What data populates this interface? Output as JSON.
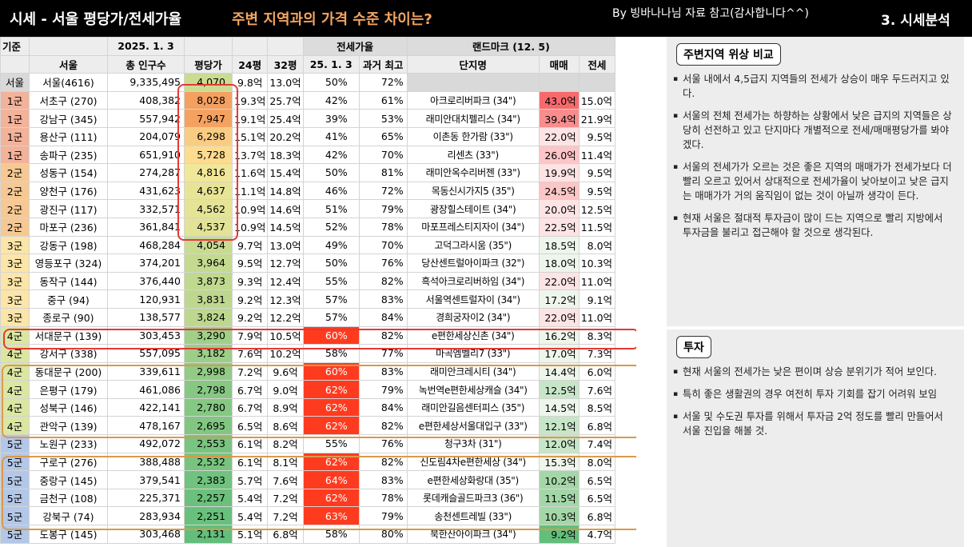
{
  "header": {
    "title": "시세 - 서울 평당가/전세가율",
    "subtitle": "주변 지역과의 가격 수준 차이는?",
    "credit": "By 빙바나나님 자료 참고(감사합니다^^)",
    "section": "3. 시세분석"
  },
  "table": {
    "row0": {
      "label": "기준",
      "date": "2025. 1. 3",
      "jeonse_header": "전세가율",
      "landmark_header": "랜드마크 (12. 5)"
    },
    "headers": [
      "서울",
      "총 인구수",
      "평당가",
      "24평",
      "32평",
      "25. 1. 3",
      "과거 최고",
      "단지명",
      "매매",
      "전세"
    ],
    "rows": [
      {
        "grade": "서울",
        "district": "서울(4616)",
        "pop": "9,335,495",
        "pyeong": "4,070",
        "p24": "9.8억",
        "p32": "13.0억",
        "jr": "50%",
        "jp": "72%",
        "name": "",
        "sale": "",
        "jeonse": ""
      },
      {
        "grade": "1군",
        "district": "서초구 (270)",
        "pop": "408,382",
        "pyeong": "8,028",
        "p24": "19.3억",
        "p32": "25.7억",
        "jr": "42%",
        "jp": "61%",
        "name": "아크로리버파크 (34\")",
        "sale": "43.0억",
        "jeonse": "15.0억"
      },
      {
        "grade": "1군",
        "district": "강남구 (345)",
        "pop": "557,942",
        "pyeong": "7,947",
        "p24": "19.1억",
        "p32": "25.4억",
        "jr": "39%",
        "jp": "53%",
        "name": "래미안대치펠리스 (34\")",
        "sale": "39.4억",
        "jeonse": "21.9억"
      },
      {
        "grade": "1군",
        "district": "용산구 (111)",
        "pop": "204,079",
        "pyeong": "6,298",
        "p24": "15.1억",
        "p32": "20.2억",
        "jr": "41%",
        "jp": "65%",
        "name": "이촌동 한가람 (33\")",
        "sale": "22.0억",
        "jeonse": "9.5억"
      },
      {
        "grade": "1군",
        "district": "송파구 (235)",
        "pop": "651,910",
        "pyeong": "5,728",
        "p24": "13.7억",
        "p32": "18.3억",
        "jr": "42%",
        "jp": "70%",
        "name": "리센츠 (33\")",
        "sale": "26.0억",
        "jeonse": "11.4억"
      },
      {
        "grade": "2군",
        "district": "성동구 (154)",
        "pop": "274,287",
        "pyeong": "4,816",
        "p24": "11.6억",
        "p32": "15.4억",
        "jr": "50%",
        "jp": "81%",
        "name": "래미안옥수리버젠 (33\")",
        "sale": "19.9억",
        "jeonse": "9.5억"
      },
      {
        "grade": "2군",
        "district": "양천구 (176)",
        "pop": "431,623",
        "pyeong": "4,637",
        "p24": "11.1억",
        "p32": "14.8억",
        "jr": "46%",
        "jp": "72%",
        "name": "목동신시가지5 (35\")",
        "sale": "24.5억",
        "jeonse": "9.5억"
      },
      {
        "grade": "2군",
        "district": "광진구 (117)",
        "pop": "332,571",
        "pyeong": "4,562",
        "p24": "10.9억",
        "p32": "14.6억",
        "jr": "51%",
        "jp": "79%",
        "name": "광장힐스테이트 (34\")",
        "sale": "20.0억",
        "jeonse": "12.5억"
      },
      {
        "grade": "2군",
        "district": "마포구 (236)",
        "pop": "361,841",
        "pyeong": "4,537",
        "p24": "10.9억",
        "p32": "14.5억",
        "jr": "52%",
        "jp": "78%",
        "name": "마포프레스티지자이 (34\")",
        "sale": "22.5억",
        "jeonse": "11.5억"
      },
      {
        "grade": "3군",
        "district": "강동구 (198)",
        "pop": "468,284",
        "pyeong": "4,054",
        "p24": "9.7억",
        "p32": "13.0억",
        "jr": "49%",
        "jp": "70%",
        "name": "고덕그라시움 (35\")",
        "sale": "18.5억",
        "jeonse": "8.0억"
      },
      {
        "grade": "3군",
        "district": "영등포구 (324)",
        "pop": "374,201",
        "pyeong": "3,964",
        "p24": "9.5억",
        "p32": "12.7억",
        "jr": "50%",
        "jp": "76%",
        "name": "당산센트럴아이파크 (32\")",
        "sale": "18.0억",
        "jeonse": "10.3억"
      },
      {
        "grade": "3군",
        "district": "동작구 (144)",
        "pop": "376,440",
        "pyeong": "3,873",
        "p24": "9.3억",
        "p32": "12.4억",
        "jr": "55%",
        "jp": "82%",
        "name": "흑석아크로리버하임 (34\")",
        "sale": "22.0억",
        "jeonse": "11.0억"
      },
      {
        "grade": "3군",
        "district": "중구 (94)",
        "pop": "120,931",
        "pyeong": "3,831",
        "p24": "9.2억",
        "p32": "12.3억",
        "jr": "57%",
        "jp": "83%",
        "name": "서울역센트럴자이 (34\")",
        "sale": "17.2억",
        "jeonse": "9.1억"
      },
      {
        "grade": "3군",
        "district": "종로구 (90)",
        "pop": "138,577",
        "pyeong": "3,824",
        "p24": "9.2억",
        "p32": "12.2억",
        "jr": "57%",
        "jp": "84%",
        "name": "경희궁자이2 (34\")",
        "sale": "22.0억",
        "jeonse": "11.0억"
      },
      {
        "grade": "4군",
        "district": "서대문구 (139)",
        "pop": "303,453",
        "pyeong": "3,290",
        "p24": "7.9억",
        "p32": "10.5억",
        "jr": "60%",
        "jp": "82%",
        "name": "e편한세상신촌 (34\")",
        "sale": "16.2억",
        "jeonse": "8.3억"
      },
      {
        "grade": "4군",
        "district": "강서구 (338)",
        "pop": "557,095",
        "pyeong": "3,182",
        "p24": "7.6억",
        "p32": "10.2억",
        "jr": "58%",
        "jp": "77%",
        "name": "마곡엠벨리7 (33\")",
        "sale": "17.0억",
        "jeonse": "7.3억"
      },
      {
        "grade": "4군",
        "district": "동대문구 (200)",
        "pop": "339,611",
        "pyeong": "2,998",
        "p24": "7.2억",
        "p32": "9.6억",
        "jr": "60%",
        "jp": "83%",
        "name": "래미안크레시티 (34\")",
        "sale": "14.4억",
        "jeonse": "6.0억"
      },
      {
        "grade": "4군",
        "district": "은평구 (179)",
        "pop": "461,086",
        "pyeong": "2,798",
        "p24": "6.7억",
        "p32": "9.0억",
        "jr": "62%",
        "jp": "79%",
        "name": "녹번역e편한세상캐슬 (34\")",
        "sale": "12.5억",
        "jeonse": "7.6억"
      },
      {
        "grade": "4군",
        "district": "성북구 (146)",
        "pop": "422,141",
        "pyeong": "2,780",
        "p24": "6.7억",
        "p32": "8.9억",
        "jr": "62%",
        "jp": "84%",
        "name": "래미안길음센터피스 (35\")",
        "sale": "14.5억",
        "jeonse": "8.5억"
      },
      {
        "grade": "4군",
        "district": "관악구 (139)",
        "pop": "478,167",
        "pyeong": "2,695",
        "p24": "6.5억",
        "p32": "8.6억",
        "jr": "62%",
        "jp": "82%",
        "name": "e편한세상서울대입구 (33\")",
        "sale": "12.1억",
        "jeonse": "6.8억"
      },
      {
        "grade": "5군",
        "district": "노원구 (233)",
        "pop": "492,072",
        "pyeong": "2,553",
        "p24": "6.1억",
        "p32": "8.2억",
        "jr": "55%",
        "jp": "76%",
        "name": "청구3차 (31\")",
        "sale": "12.0억",
        "jeonse": "7.4억"
      },
      {
        "grade": "5군",
        "district": "구로구 (276)",
        "pop": "388,488",
        "pyeong": "2,532",
        "p24": "6.1억",
        "p32": "8.1억",
        "jr": "62%",
        "jp": "82%",
        "name": "신도림4차e편한세상 (34\")",
        "sale": "15.3억",
        "jeonse": "8.0억"
      },
      {
        "grade": "5군",
        "district": "중랑구 (145)",
        "pop": "379,541",
        "pyeong": "2,383",
        "p24": "5.7억",
        "p32": "7.6억",
        "jr": "64%",
        "jp": "83%",
        "name": "e편한세상화랑대 (35\")",
        "sale": "10.2억",
        "jeonse": "6.5억"
      },
      {
        "grade": "5군",
        "district": "금천구 (108)",
        "pop": "225,371",
        "pyeong": "2,257",
        "p24": "5.4억",
        "p32": "7.2억",
        "jr": "62%",
        "jp": "78%",
        "name": "롯데캐슬골드파크3 (36\")",
        "sale": "11.5억",
        "jeonse": "6.5억"
      },
      {
        "grade": "5군",
        "district": "강북구 (74)",
        "pop": "283,934",
        "pyeong": "2,251",
        "p24": "5.4억",
        "p32": "7.2억",
        "jr": "63%",
        "jp": "79%",
        "name": "송천센트레빌 (33\")",
        "sale": "10.3억",
        "jeonse": "6.8억"
      },
      {
        "grade": "5군",
        "district": "도봉구 (145)",
        "pop": "303,468",
        "pyeong": "2,131",
        "p24": "5.1억",
        "p32": "6.8억",
        "jr": "58%",
        "jp": "80%",
        "name": "북한산아이파크 (34\")",
        "sale": "9.2억",
        "jeonse": "4.7억"
      }
    ]
  },
  "panels": {
    "compare": {
      "title": "주변지역 위상 비교",
      "bullets": [
        "서울 내에서 4,5급지 지역들의 전세가 상승이 매우 두드러지고 있다.",
        "서울의 전체 전세가는 하향하는 상황에서 낮은 급지의 지역들은 상당히 선전하고 있고 단지마다 개별적으로 전세/매매평당가를 봐야겠다.",
        "서울의 전세가가 오르는 것은 좋은 지역의 매매가가 전세가보다 더 빨리 오르고 있어서 상대적으로 전세가율이 낮아보이고 낮은 급지는 매매가가 거의 움직임이 없는 것이 아닐까 생각이 든다.",
        "현재 서울은 절대적 투자금이 많이 드는 지역으로 빨리 지방에서 투자금을 불리고 접근해야 할 것으로 생각된다."
      ]
    },
    "invest": {
      "title": "투자",
      "bullets": [
        "현재 서울의 전세가는 낮은 편이며 상승 분위기가 적어 보인다.",
        "특히 좋은 생활권의 경우 여전히 투자 기회를 잡기 어려워 보임",
        "서울 및 수도권 투자를 위해서 투자금 2억 정도를 빨리 만들어서 서울 진입을 해볼 것."
      ]
    }
  },
  "colors": {
    "header_bg": "#000000",
    "subtitle": "#f4a460",
    "highlight_red": "#e53935",
    "jeonse_high": "#ff3b1f",
    "grade1": "#f3b29a",
    "grade2": "#f6c994",
    "grade3": "#fbe5a8",
    "grade4": "#dbe6a1",
    "grade5": "#b3c7e8"
  }
}
